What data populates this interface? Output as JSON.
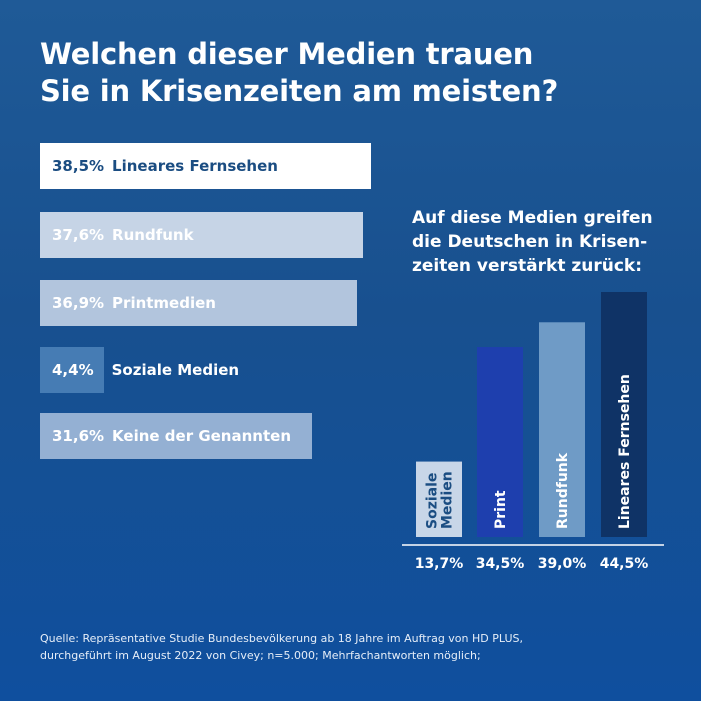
{
  "title": {
    "line1": "Welchen dieser Medien trauen",
    "line2": "Sie in Krisenzeiten am meisten?"
  },
  "chart_data": [
    {
      "type": "bar",
      "orientation": "horizontal",
      "title": "Welchen dieser Medien trauen Sie in Krisenzeiten am meisten?",
      "categories": [
        "Lineares Fernsehen",
        "Rundfunk",
        "Printmedien",
        "Soziale Medien",
        "Keine der Genannten"
      ],
      "values": [
        38.5,
        37.6,
        36.9,
        4.4,
        31.6
      ],
      "labels": [
        "38,5%",
        "37,6%",
        "36,9%",
        "4,4%",
        "31,6%"
      ],
      "colors": [
        "#ffffff",
        "#c6d4e6",
        "#b2c5dd",
        "#467cb4",
        "#94b0d3"
      ],
      "text_colors": [
        "#1b4d82",
        "#ffffff",
        "#ffffff",
        "#ffffff",
        "#ffffff"
      ],
      "unit": "%"
    },
    {
      "type": "bar",
      "orientation": "vertical",
      "title": "Auf diese Medien greifen die Deutschen in Krisenzeiten verstärkt zurück:",
      "title_lines": [
        "Auf diese Medien greifen",
        "die Deutschen in Krisen-",
        "zeiten verstärkt zurück:"
      ],
      "categories": [
        "Soziale Medien",
        "Print",
        "Rundfunk",
        "Lineares Fernsehen"
      ],
      "bar_labels": [
        [
          "Soziale",
          "Medien"
        ],
        [
          "Print"
        ],
        [
          "Rundfunk"
        ],
        [
          "Lineares Fernsehen"
        ]
      ],
      "values": [
        13.7,
        34.5,
        39.0,
        44.5
      ],
      "labels": [
        "13,7%",
        "34,5%",
        "39,0%",
        "44,5%"
      ],
      "colors": [
        "#c8d6e8",
        "#1e3fae",
        "#6f9bc6",
        "#0f3366"
      ],
      "text_colors": [
        "#1b4d82",
        "#ffffff",
        "#ffffff",
        "#ffffff"
      ],
      "unit": "%"
    }
  ],
  "source": {
    "line1": "Quelle: Repräsentative Studie Bundesbevölkerung ab 18 Jahre im Auftrag von HD PLUS,",
    "line2": "durchgeführt im August 2022 von Civey; n=5.000; Mehrfachantworten möglich;"
  }
}
